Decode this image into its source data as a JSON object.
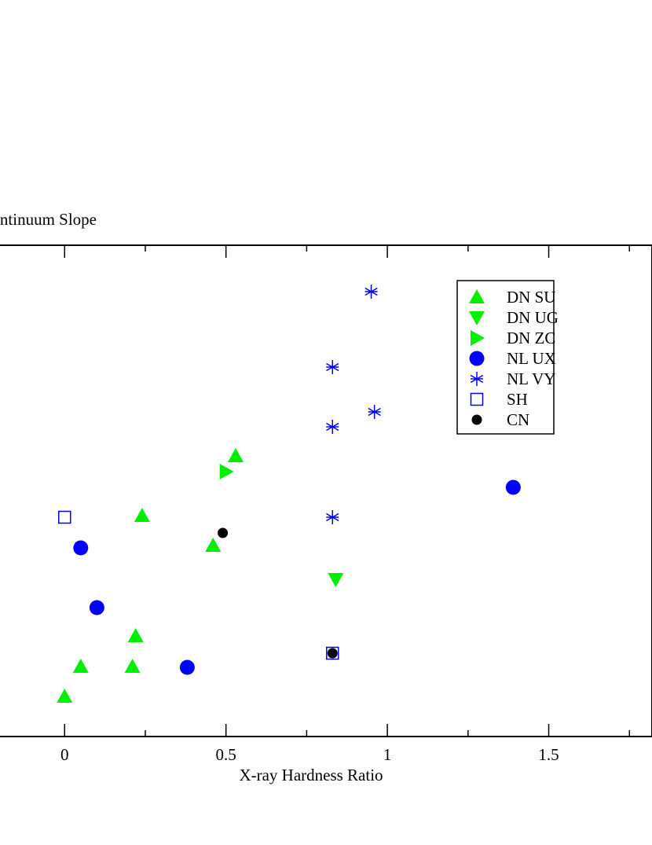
{
  "chart_data": {
    "type": "scatter",
    "x_label": "X-ray Hardness Ratio",
    "y_label": "Continuum Slope",
    "xlim": [
      -0.3,
      1.82
    ],
    "xticks": [
      0,
      0.5,
      1,
      1.5
    ],
    "xminor_ticks": [
      0.25,
      0.75,
      1.25,
      1.75
    ],
    "ylim": [
      0,
      6.25
    ],
    "legend": "top-right",
    "series": [
      {
        "name": "DN SU",
        "color": "#00ee00",
        "marker": "triangle-up",
        "x": [
          0.53,
          0.24,
          0.46,
          0.22,
          0.05,
          0.21,
          0
        ],
        "values": [
          3.57,
          2.81,
          2.43,
          1.28,
          0.89,
          0.89,
          0.51
        ]
      },
      {
        "name": "DN UG",
        "color": "#00ee00",
        "marker": "triangle-down",
        "x": [
          0.84
        ],
        "values": [
          2.0
        ]
      },
      {
        "name": "DN ZC",
        "color": "#00ee00",
        "marker": "triangle-right",
        "x": [
          0.5
        ],
        "values": [
          3.37
        ]
      },
      {
        "name": "NL UX",
        "color": "#0000ff",
        "marker": "circle",
        "x": [
          1.39,
          0.05,
          0.1,
          0.38
        ],
        "values": [
          3.17,
          2.4,
          1.64,
          0.88
        ]
      },
      {
        "name": "NL VY",
        "color": "#0000ff",
        "marker": "asterisk",
        "x": [
          0.95,
          0.83,
          0.96,
          0.83,
          0.83
        ],
        "values": [
          5.66,
          4.7,
          4.13,
          3.94,
          2.79
        ]
      },
      {
        "name": "SH",
        "color": "#0000ff",
        "marker": "square",
        "x": [
          0,
          0.83
        ],
        "values": [
          2.79,
          1.06
        ]
      },
      {
        "name": "CN",
        "color": "#000000",
        "marker": "dot",
        "x": [
          0.49,
          0.83
        ],
        "values": [
          2.59,
          1.06
        ]
      }
    ]
  }
}
